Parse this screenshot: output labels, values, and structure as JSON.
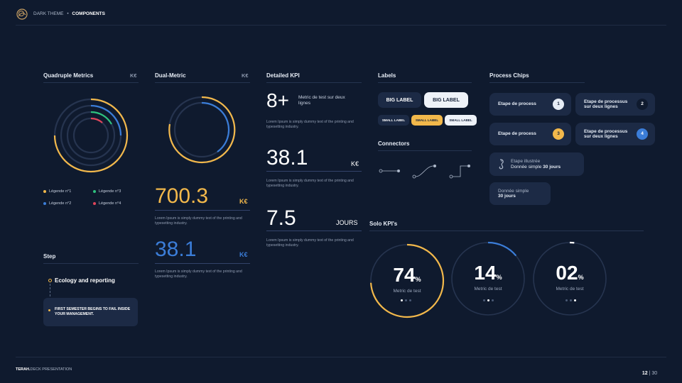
{
  "header": {
    "theme_label": "DARK THEME",
    "separator": "•",
    "section_label": "COMPONENTS"
  },
  "footer": {
    "brand_bold": "TERAH.",
    "brand_rest": "DECK PRESENTATION",
    "page_current": "12",
    "page_sep": " | ",
    "page_total": "30"
  },
  "quadruple": {
    "title": "Quadruple Metrics",
    "unit": "K€",
    "legend": [
      {
        "label": "Légende n°1",
        "color": "#f2b84b"
      },
      {
        "label": "Légende n°2",
        "color": "#3b7dd8"
      },
      {
        "label": "Légende n°3",
        "color": "#2ec27e"
      },
      {
        "label": "Légende n°4",
        "color": "#e0455a"
      }
    ]
  },
  "dual": {
    "title": "Dual-Metric",
    "unit": "K€",
    "value1": "700.3",
    "unit1": "K€",
    "text1": "Lorem Ipsum is simply dummy text of the printing and typesetting industry.",
    "value2": "38.1",
    "unit2": "K€",
    "text2": "Lorem Ipsum is simply dummy text of the printing and typesetting industry."
  },
  "detailed": {
    "title": "Detailed KPI",
    "kpi1_value": "8+",
    "kpi1_desc": "Metric de test sur deux lignes",
    "kpi1_text": "Lorem Ipsum is simply dummy text of the printing and typesetting industry.",
    "kpi2_value": "38.1",
    "kpi2_unit": "K€",
    "kpi2_text": "Lorem Ipsum is simply dummy text of the printing and typesetting industry.",
    "kpi3_value": "7.5",
    "kpi3_unit": "JOURS",
    "kpi3_text": "Lorem Ipsum is simply dummy text of the printing and typesetting industry."
  },
  "step": {
    "title": "Step",
    "step1": "Ecology and reporting",
    "step2": "FIRST SEMESTER BEGINS TO FAIL INSIDE YOUR MANAGEMENT."
  },
  "labels": {
    "title": "Labels",
    "big1": "BIG LABEL",
    "big2": "BIG LABEL",
    "small1": "SMALL LABEL",
    "small2": "SMALL LABEL",
    "small3": "SMALL LABEL"
  },
  "connectors": {
    "title": "Connectors"
  },
  "process": {
    "title": "Process Chips",
    "chips": [
      {
        "label": "Etape de process",
        "num": "1"
      },
      {
        "label": "Etape de processus sur deux lignes",
        "num": "2"
      },
      {
        "label": "Etape de process",
        "num": "3"
      },
      {
        "label": "Etape de processus sur deux lignes",
        "num": "4"
      }
    ],
    "illustrated_title": "Etape illustrée",
    "illustrated_text": "Donnée simple",
    "illustrated_bold": "30 jours",
    "simple_title": "Donnée simple",
    "simple_bold": "30 jours"
  },
  "solo": {
    "title": "Solo KPI's",
    "items": [
      {
        "value": "74",
        "unit": "%",
        "label": "Metric de test",
        "fraction": 0.74,
        "color": "#f2b84b"
      },
      {
        "value": "14",
        "unit": "%",
        "label": "Metric de test",
        "fraction": 0.14,
        "color": "#3b7dd8"
      },
      {
        "value": "02",
        "unit": "%",
        "label": "Metric de test",
        "fraction": 0.02,
        "color": "#ffffff"
      }
    ]
  },
  "colors": {
    "background": "#0f1a2e",
    "gold": "#f2b84b",
    "blue": "#3b7dd8",
    "green": "#2ec27e",
    "red": "#e0455a",
    "card": "#1c2a45"
  }
}
